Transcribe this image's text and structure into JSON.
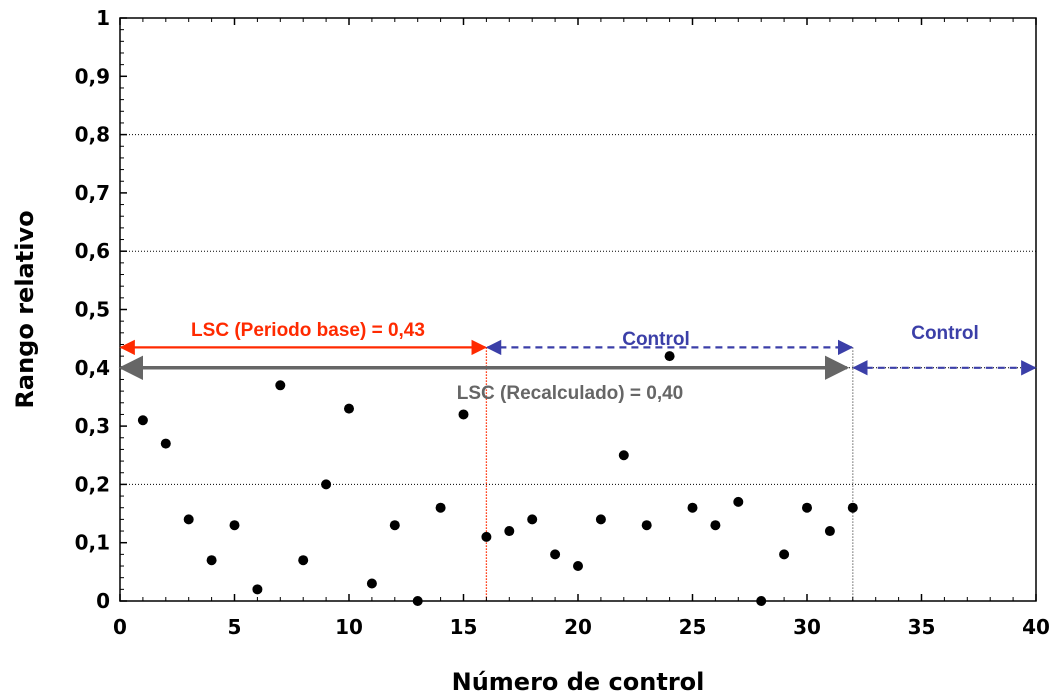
{
  "chart_data": {
    "type": "scatter",
    "title": "",
    "xlabel": "Número de control",
    "ylabel": "Rango relativo",
    "xlim": [
      0,
      40
    ],
    "ylim": [
      0,
      1
    ],
    "x_ticks": [
      "0",
      "5",
      "10",
      "15",
      "20",
      "25",
      "30",
      "35",
      "40"
    ],
    "y_ticks": [
      "0",
      "0,1",
      "0,2",
      "0,3",
      "0,4",
      "0,5",
      "0,6",
      "0,7",
      "0,8",
      "0,9",
      "1"
    ],
    "grid": "horizontal dotted at 0.2, 0.4, 0.6, 0.8",
    "series": [
      {
        "color": "#000000",
        "x": [
          1,
          2,
          3,
          4,
          5,
          6,
          7,
          8,
          9,
          10,
          11,
          12,
          13,
          14,
          15,
          16,
          17,
          18,
          19,
          20,
          21,
          22,
          23,
          24,
          25,
          26,
          27,
          28,
          29,
          30,
          31,
          32
        ],
        "y": [
          0.31,
          0.27,
          0.14,
          0.07,
          0.13,
          0.02,
          0.37,
          0.07,
          0.2,
          0.33,
          0.03,
          0.13,
          0.0,
          0.16,
          0.32,
          0.11,
          0.12,
          0.14,
          0.08,
          0.06,
          0.14,
          0.25,
          0.13,
          0.42,
          0.16,
          0.13,
          0.17,
          0.0,
          0.08,
          0.16,
          0.12,
          0.16
        ]
      }
    ],
    "annotations": [
      {
        "id": "lsc-base",
        "text": "LSC (Periodo base) = 0,43",
        "color": "#ff2a00",
        "y": 0.435,
        "x_start": 0,
        "x_end": 16,
        "style": "solid double arrow"
      },
      {
        "id": "control-1",
        "text": "Control",
        "color": "#3b3fa8",
        "y": 0.435,
        "x_start": 16,
        "x_end": 32,
        "style": "dashed double arrow"
      },
      {
        "id": "lsc-recalc",
        "text": "LSC (Recalculado) = 0,40",
        "color": "#666666",
        "y": 0.4,
        "x_start": 0,
        "x_end": 32,
        "style": "solid double arrow"
      },
      {
        "id": "control-2",
        "text": "Control",
        "color": "#3b3fa8",
        "y": 0.4,
        "x_start": 32,
        "x_end": 40,
        "style": "dashed double arrow"
      }
    ],
    "vertical_lines": [
      {
        "x": 16,
        "color": "#ff2a00",
        "style": "dotted"
      },
      {
        "x": 32,
        "color": "#888888",
        "style": "dotted"
      }
    ]
  }
}
